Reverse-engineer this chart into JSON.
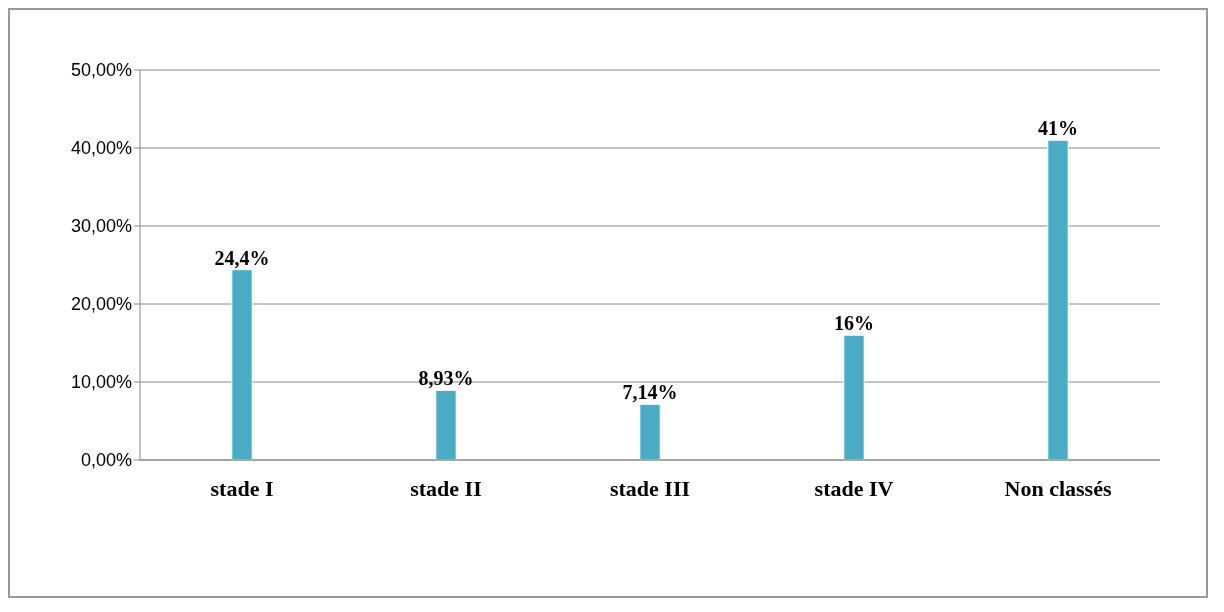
{
  "chart_data": {
    "type": "bar",
    "categories": [
      "stade I",
      "stade II",
      "stade III",
      "stade IV",
      "Non classés"
    ],
    "values": [
      24.4,
      8.93,
      7.14,
      16,
      41
    ],
    "value_labels": [
      "24,4%",
      "8,93%",
      "7,14%",
      "16%",
      "41%"
    ],
    "color": "#4bacc6",
    "ylim": [
      0,
      50
    ],
    "yticks": [
      {
        "value": 0,
        "label": "0,00%"
      },
      {
        "value": 10,
        "label": "10,00%"
      },
      {
        "value": 20,
        "label": "20,00%"
      },
      {
        "value": 30,
        "label": "30,00%"
      },
      {
        "value": 40,
        "label": "40,00%"
      },
      {
        "value": 50,
        "label": "50,00%"
      }
    ],
    "grid": "y"
  }
}
